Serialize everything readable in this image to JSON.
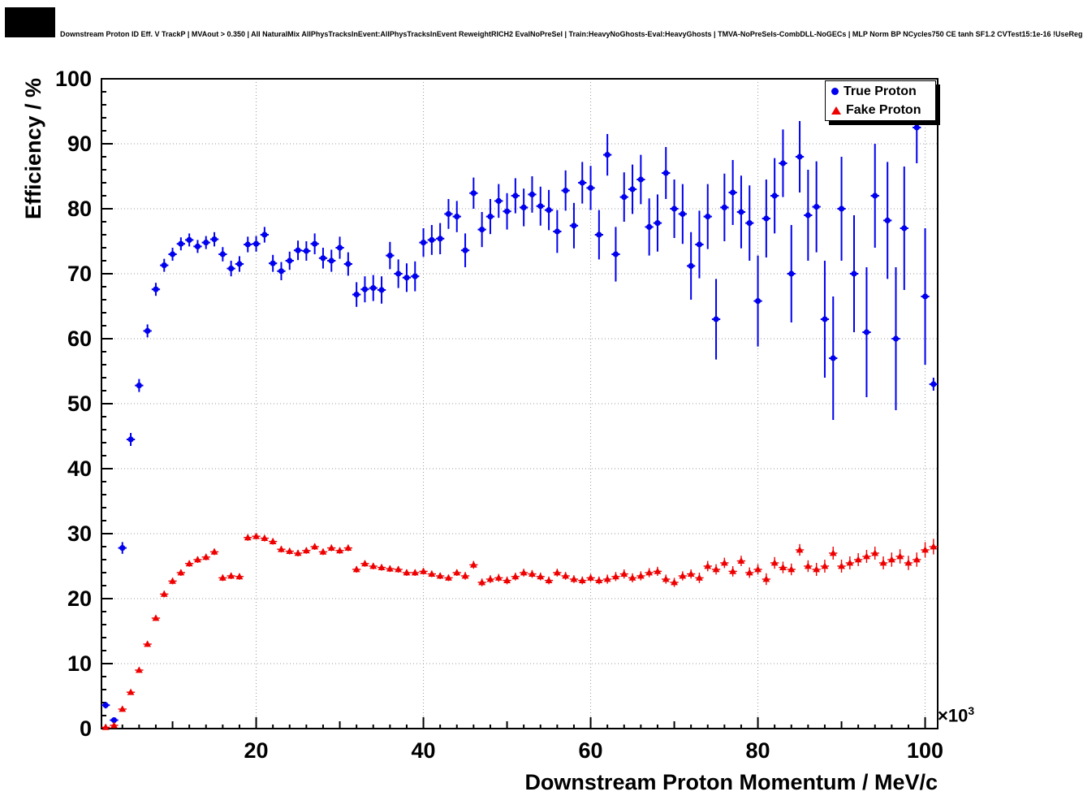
{
  "page": {
    "title": "Downstream Proton ID Eff. V TrackP | MVAout > 0.350 | All NaturalMix AllPhysTracksInEvent:AllPhysTracksInEvent ReweightRICH2 EvalNoPreSel | Train:HeavyNoGhosts-Eval:HeavyGhosts | TMVA-NoPreSels-CombDLL-NoGECs | MLP Norm BP NCycles750 CE tanh SF1.2 CVTest15:1e-16 !UseReg"
  },
  "chart_data": {
    "type": "scatter",
    "title": "Downstream Proton ID Eff. V TrackP | MVAout > 0.350 | All NaturalMix AllPhysTracksInEvent:AllPhysTracksInEvent ReweightRICH2 EvalNoPreSel | Train:HeavyNoGhosts-Eval:HeavyGhosts | TMVA-NoPreSels-CombDLL-NoGECs | MLP Norm BP NCycles750 CE tanh SF1.2 CVTest15:1e-16 !UseReg",
    "xlabel": "Downstream Proton Momentum / MeV/c",
    "ylabel": "Efficiency / %",
    "x_power_base": "×10",
    "x_power_exp": "3",
    "xlim": [
      1.5,
      101.5
    ],
    "ylim": [
      0,
      100
    ],
    "xticks": [
      20,
      40,
      60,
      80,
      100
    ],
    "yticks": [
      0,
      10,
      20,
      30,
      40,
      50,
      60,
      70,
      80,
      90,
      100
    ],
    "grid": true,
    "legend_position": "top-right",
    "colors": {
      "true_proton": "#0000ee",
      "fake_proton": "#ee0000",
      "grid": "#9a9a9a",
      "frame": "#000000"
    },
    "series": [
      {
        "name": "True Proton",
        "marker": "circle",
        "color": "#0000ee",
        "bin_half_width": 0.5,
        "points": [
          [
            2,
            3.6,
            0.5
          ],
          [
            3,
            1.3,
            0.4
          ],
          [
            4,
            27.8,
            0.9
          ],
          [
            5,
            44.5,
            1.0
          ],
          [
            6,
            52.8,
            1.0
          ],
          [
            7,
            61.2,
            1.0
          ],
          [
            8,
            67.6,
            1.0
          ],
          [
            9,
            71.3,
            1.0
          ],
          [
            10,
            73.0,
            1.0
          ],
          [
            11,
            74.6,
            1.0
          ],
          [
            12,
            75.2,
            1.0
          ],
          [
            13,
            74.2,
            1.0
          ],
          [
            14,
            74.8,
            1.0
          ],
          [
            15,
            75.3,
            1.1
          ],
          [
            16,
            73.0,
            1.1
          ],
          [
            17,
            70.8,
            1.2
          ],
          [
            18,
            71.5,
            1.2
          ],
          [
            19,
            74.5,
            1.2
          ],
          [
            20,
            74.6,
            1.2
          ],
          [
            21,
            76.0,
            1.2
          ],
          [
            22,
            71.6,
            1.3
          ],
          [
            23,
            70.4,
            1.4
          ],
          [
            24,
            72.0,
            1.4
          ],
          [
            25,
            73.6,
            1.5
          ],
          [
            26,
            73.5,
            1.5
          ],
          [
            27,
            74.6,
            1.6
          ],
          [
            28,
            72.4,
            1.6
          ],
          [
            29,
            72.0,
            1.7
          ],
          [
            30,
            74.0,
            1.7
          ],
          [
            31,
            71.5,
            1.8
          ],
          [
            32,
            66.8,
            1.9
          ],
          [
            33,
            67.6,
            2.0
          ],
          [
            34,
            67.8,
            2.0
          ],
          [
            35,
            67.5,
            2.1
          ],
          [
            36,
            72.8,
            2.1
          ],
          [
            37,
            70.0,
            2.2
          ],
          [
            38,
            69.4,
            2.2
          ],
          [
            39,
            69.6,
            2.3
          ],
          [
            40,
            74.8,
            2.2
          ],
          [
            41,
            75.2,
            2.3
          ],
          [
            42,
            75.4,
            2.4
          ],
          [
            43,
            79.2,
            2.3
          ],
          [
            44,
            78.8,
            2.4
          ],
          [
            45,
            73.6,
            2.6
          ],
          [
            46,
            82.4,
            2.4
          ],
          [
            47,
            76.8,
            2.7
          ],
          [
            48,
            78.8,
            2.7
          ],
          [
            49,
            81.2,
            2.6
          ],
          [
            50,
            79.6,
            2.8
          ],
          [
            51,
            82.0,
            2.7
          ],
          [
            52,
            80.2,
            2.9
          ],
          [
            53,
            82.2,
            2.8
          ],
          [
            54,
            80.4,
            3.0
          ],
          [
            55,
            79.8,
            3.1
          ],
          [
            56,
            76.5,
            3.3
          ],
          [
            57,
            82.8,
            3.1
          ],
          [
            58,
            77.4,
            3.5
          ],
          [
            59,
            84.0,
            3.2
          ],
          [
            60,
            83.2,
            3.4
          ],
          [
            61,
            76.0,
            3.8
          ],
          [
            62,
            88.3,
            3.2
          ],
          [
            63,
            73.0,
            4.2
          ],
          [
            64,
            81.8,
            3.8
          ],
          [
            65,
            83.0,
            3.8
          ],
          [
            66,
            84.5,
            3.8
          ],
          [
            67,
            77.2,
            4.4
          ],
          [
            68,
            77.8,
            4.4
          ],
          [
            69,
            85.5,
            4.0
          ],
          [
            70,
            80.0,
            4.5
          ],
          [
            71,
            79.2,
            4.6
          ],
          [
            72,
            71.2,
            5.2
          ],
          [
            73,
            74.5,
            5.2
          ],
          [
            74,
            78.8,
            5.0
          ],
          [
            75,
            63.0,
            6.2
          ],
          [
            76,
            80.2,
            5.2
          ],
          [
            77,
            82.5,
            5.0
          ],
          [
            78,
            79.5,
            5.6
          ],
          [
            79,
            77.8,
            5.8
          ],
          [
            80,
            65.8,
            7.0
          ],
          [
            81,
            78.5,
            6.0
          ],
          [
            82,
            82.0,
            5.8
          ],
          [
            83,
            87.0,
            5.2
          ],
          [
            84,
            70.0,
            7.5
          ],
          [
            85,
            88.0,
            5.5
          ],
          [
            86,
            79.0,
            7.0
          ],
          [
            87,
            80.3,
            7.0
          ],
          [
            88,
            63.0,
            9.0
          ],
          [
            89,
            57.0,
            9.5
          ],
          [
            90,
            80.0,
            8.0
          ],
          [
            91.5,
            70.0,
            9.0
          ],
          [
            93,
            61.0,
            10.0
          ],
          [
            94,
            82.0,
            8.0
          ],
          [
            95.5,
            78.2,
            9.0
          ],
          [
            96.5,
            60.0,
            11.0
          ],
          [
            97.5,
            77.0,
            9.5
          ],
          [
            99,
            92.5,
            5.5
          ],
          [
            100,
            66.5,
            10.5
          ],
          [
            101,
            53.0,
            1.0
          ]
        ]
      },
      {
        "name": "Fake Proton",
        "marker": "triangle",
        "color": "#ee0000",
        "bin_half_width": 0.5,
        "points": [
          [
            2,
            0.2,
            0.1
          ],
          [
            3,
            0.5,
            0.1
          ],
          [
            4,
            3.0,
            0.2
          ],
          [
            5,
            5.6,
            0.3
          ],
          [
            6,
            9.0,
            0.3
          ],
          [
            7,
            13.0,
            0.4
          ],
          [
            8,
            17.0,
            0.4
          ],
          [
            9,
            20.7,
            0.5
          ],
          [
            10,
            22.7,
            0.5
          ],
          [
            11,
            24.0,
            0.5
          ],
          [
            12,
            25.4,
            0.5
          ],
          [
            13,
            26.0,
            0.5
          ],
          [
            14,
            26.4,
            0.5
          ],
          [
            15,
            27.2,
            0.5
          ],
          [
            16,
            23.2,
            0.5
          ],
          [
            17,
            23.5,
            0.5
          ],
          [
            18,
            23.4,
            0.5
          ],
          [
            19,
            29.4,
            0.5
          ],
          [
            20,
            29.6,
            0.5
          ],
          [
            21,
            29.3,
            0.5
          ],
          [
            22,
            28.8,
            0.5
          ],
          [
            23,
            27.6,
            0.5
          ],
          [
            24,
            27.3,
            0.5
          ],
          [
            25,
            27.0,
            0.5
          ],
          [
            26,
            27.4,
            0.5
          ],
          [
            27,
            28.0,
            0.5
          ],
          [
            28,
            27.2,
            0.5
          ],
          [
            29,
            27.8,
            0.5
          ],
          [
            30,
            27.4,
            0.5
          ],
          [
            31,
            27.8,
            0.5
          ],
          [
            32,
            24.5,
            0.5
          ],
          [
            33,
            25.4,
            0.5
          ],
          [
            34,
            25.0,
            0.5
          ],
          [
            35,
            24.8,
            0.5
          ],
          [
            36,
            24.6,
            0.5
          ],
          [
            37,
            24.5,
            0.5
          ],
          [
            38,
            24.0,
            0.5
          ],
          [
            39,
            24.0,
            0.5
          ],
          [
            40,
            24.2,
            0.5
          ],
          [
            41,
            23.8,
            0.5
          ],
          [
            42,
            23.5,
            0.5
          ],
          [
            43,
            23.2,
            0.5
          ],
          [
            44,
            24.0,
            0.5
          ],
          [
            45,
            23.5,
            0.6
          ],
          [
            46,
            25.2,
            0.6
          ],
          [
            47,
            22.5,
            0.6
          ],
          [
            48,
            23.0,
            0.6
          ],
          [
            49,
            23.2,
            0.6
          ],
          [
            50,
            22.8,
            0.6
          ],
          [
            51,
            23.4,
            0.6
          ],
          [
            52,
            24.0,
            0.6
          ],
          [
            53,
            23.8,
            0.6
          ],
          [
            54,
            23.4,
            0.6
          ],
          [
            55,
            22.8,
            0.6
          ],
          [
            56,
            24.0,
            0.6
          ],
          [
            57,
            23.5,
            0.6
          ],
          [
            58,
            23.0,
            0.6
          ],
          [
            59,
            22.8,
            0.6
          ],
          [
            60,
            23.2,
            0.6
          ],
          [
            61,
            22.8,
            0.6
          ],
          [
            62,
            23.0,
            0.7
          ],
          [
            63,
            23.4,
            0.7
          ],
          [
            64,
            23.8,
            0.7
          ],
          [
            65,
            23.2,
            0.7
          ],
          [
            66,
            23.5,
            0.7
          ],
          [
            67,
            24.0,
            0.7
          ],
          [
            68,
            24.2,
            0.7
          ],
          [
            69,
            23.0,
            0.7
          ],
          [
            70,
            22.5,
            0.7
          ],
          [
            71,
            23.5,
            0.7
          ],
          [
            72,
            23.8,
            0.7
          ],
          [
            73,
            23.2,
            0.8
          ],
          [
            74,
            25.0,
            0.8
          ],
          [
            75,
            24.5,
            0.8
          ],
          [
            76,
            25.5,
            0.8
          ],
          [
            77,
            24.2,
            0.8
          ],
          [
            78,
            25.8,
            0.8
          ],
          [
            79,
            24.0,
            0.8
          ],
          [
            80,
            24.5,
            0.8
          ],
          [
            81,
            23.0,
            0.9
          ],
          [
            82,
            25.5,
            0.9
          ],
          [
            83,
            24.8,
            0.9
          ],
          [
            84,
            24.5,
            0.9
          ],
          [
            85,
            27.5,
            0.9
          ],
          [
            86,
            25.0,
            0.9
          ],
          [
            87,
            24.5,
            1.0
          ],
          [
            88,
            25.0,
            1.0
          ],
          [
            89,
            27.0,
            1.0
          ],
          [
            90,
            25.0,
            1.0
          ],
          [
            91,
            25.5,
            1.0
          ],
          [
            92,
            26.0,
            1.0
          ],
          [
            93,
            26.5,
            1.0
          ],
          [
            94,
            27.0,
            1.0
          ],
          [
            95,
            25.5,
            1.0
          ],
          [
            96,
            26.0,
            1.1
          ],
          [
            97,
            26.5,
            1.1
          ],
          [
            98,
            25.5,
            1.1
          ],
          [
            99,
            26.0,
            1.1
          ],
          [
            100,
            27.5,
            1.2
          ],
          [
            101,
            28.0,
            1.2
          ]
        ]
      }
    ]
  }
}
